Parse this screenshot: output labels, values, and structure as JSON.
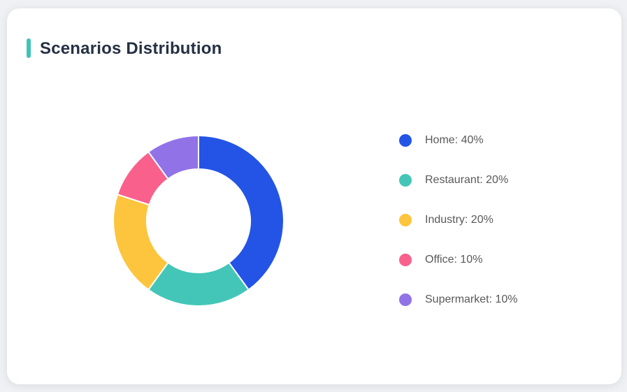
{
  "page": {
    "background_color": "#f0f1f4"
  },
  "card": {
    "title": "Scenarios Distribution",
    "accent_color": "#3fc3b7",
    "background_color": "#ffffff"
  },
  "chart_data": {
    "type": "pie",
    "subtype": "donut",
    "title": "Scenarios Distribution",
    "categories": [
      "Home",
      "Restaurant",
      "Industry",
      "Office",
      "Supermarket"
    ],
    "values": [
      40,
      20,
      20,
      10,
      10
    ],
    "unit": "%",
    "colors": [
      "#2354e5",
      "#43c6b7",
      "#fdc53d",
      "#f9618c",
      "#9173e7"
    ],
    "start_angle_deg": -90,
    "direction": "clockwise",
    "inner_radius_ratio": 0.61,
    "segment_border_color": "#ffffff",
    "segment_border_width": 2,
    "legend_position": "right",
    "legend_labels": [
      "Home: 40%",
      "Restaurant: 20%",
      "Industry: 20%",
      "Office: 10%",
      "Supermarket: 10%"
    ]
  }
}
